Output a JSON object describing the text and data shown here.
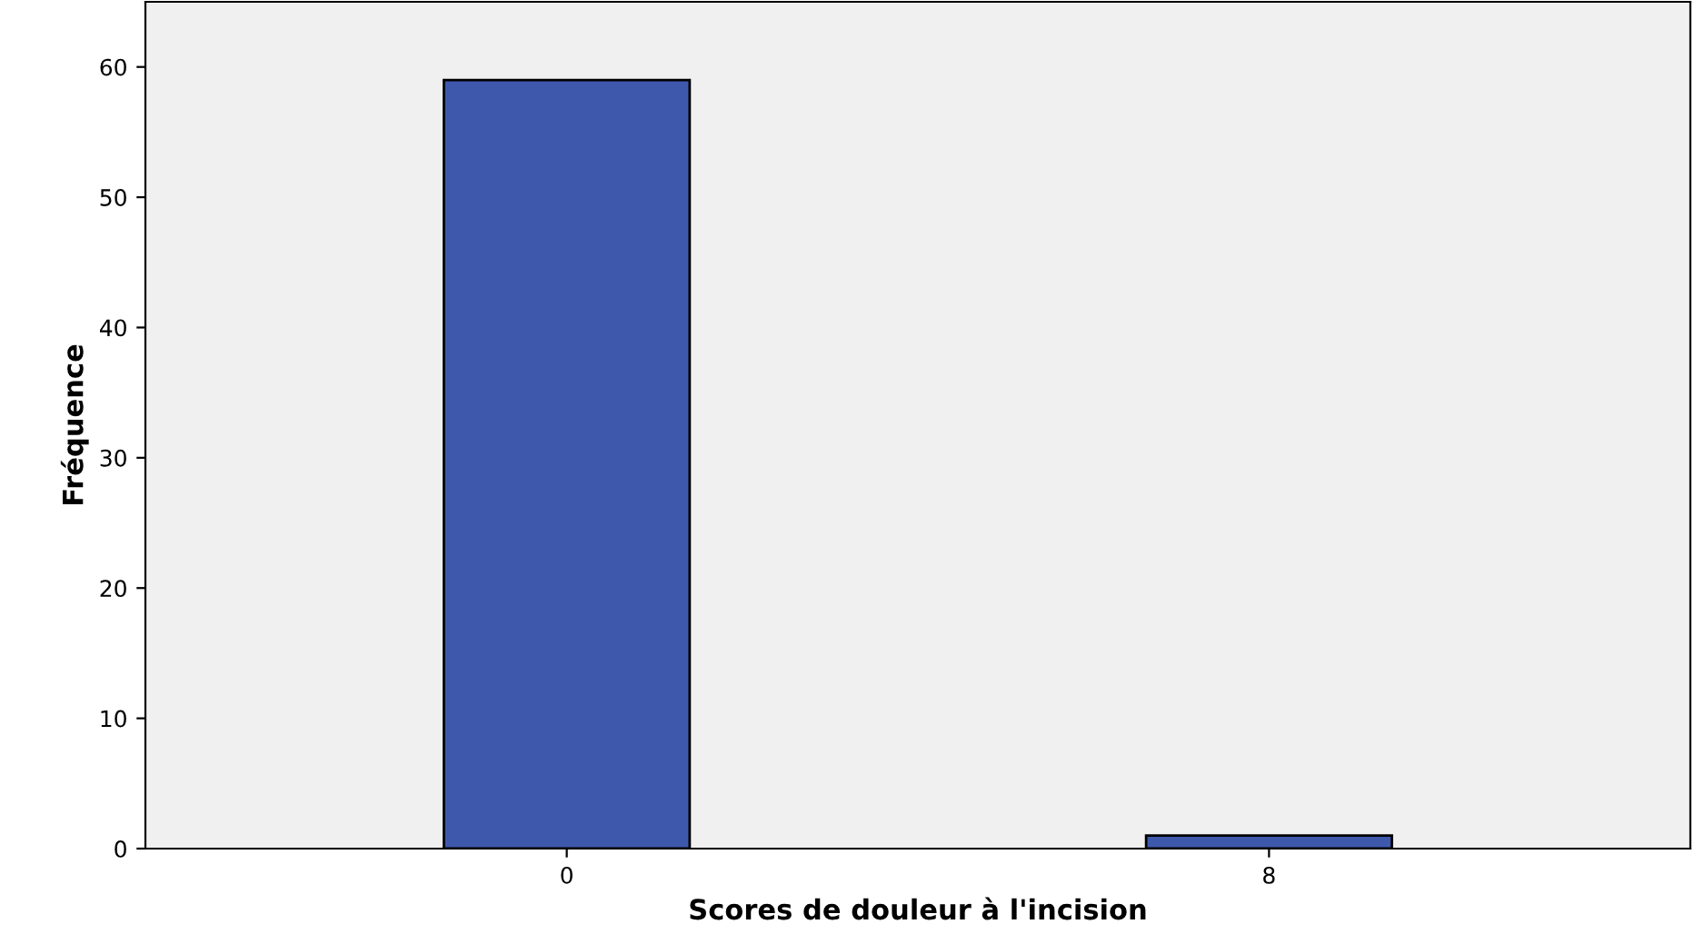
{
  "chart_data": {
    "type": "bar",
    "xlabel": "Scores de douleur à l'incision",
    "ylabel": "Fréquence",
    "categories": [
      "0",
      "8"
    ],
    "series": [
      {
        "color": "#3e58ac",
        "values": [
          59,
          1
        ]
      }
    ],
    "ylim": [
      0,
      65
    ],
    "yticks": [
      0,
      10,
      20,
      30,
      40,
      50,
      60
    ],
    "grid": false,
    "legend": false
  }
}
